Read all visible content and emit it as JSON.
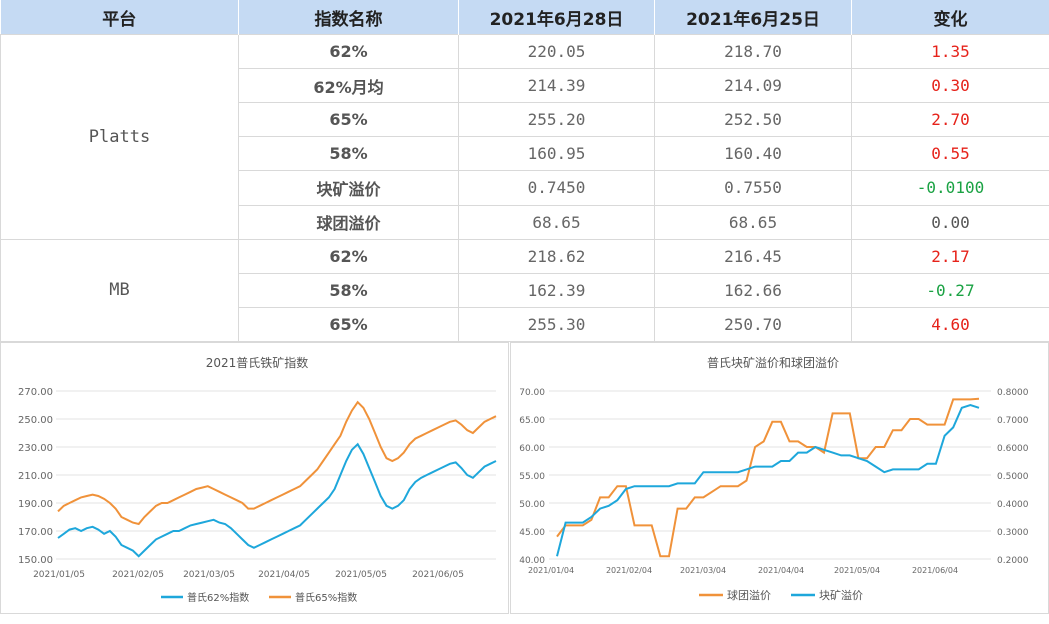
{
  "table": {
    "headers": [
      "平台",
      "指数名称",
      "2021年6月28日",
      "2021年6月25日",
      "变化"
    ],
    "groups": [
      {
        "platform": "Platts",
        "rows": [
          {
            "name": "62%",
            "d1": "220.05",
            "d2": "218.70",
            "chg": "1.35",
            "dir": "up"
          },
          {
            "name": "62%月均",
            "d1": "214.39",
            "d2": "214.09",
            "chg": "0.30",
            "dir": "up"
          },
          {
            "name": "65%",
            "d1": "255.20",
            "d2": "252.50",
            "chg": "2.70",
            "dir": "up"
          },
          {
            "name": "58%",
            "d1": "160.95",
            "d2": "160.40",
            "chg": "0.55",
            "dir": "up"
          },
          {
            "name": "块矿溢价",
            "d1": "0.7450",
            "d2": "0.7550",
            "chg": "-0.0100",
            "dir": "down"
          },
          {
            "name": "球团溢价",
            "d1": "68.65",
            "d2": "68.65",
            "chg": "0.00",
            "dir": "flat"
          }
        ]
      },
      {
        "platform": "MB",
        "rows": [
          {
            "name": "62%",
            "d1": "218.62",
            "d2": "216.45",
            "chg": "2.17",
            "dir": "up"
          },
          {
            "name": "58%",
            "d1": "162.39",
            "d2": "162.66",
            "chg": "-0.27",
            "dir": "down"
          },
          {
            "name": "65%",
            "d1": "255.30",
            "d2": "250.70",
            "chg": "4.60",
            "dir": "up"
          }
        ]
      }
    ],
    "colors": {
      "up": "#e6221a",
      "down": "#1aa243",
      "header_bg": "#c5daf3"
    }
  },
  "chart_data": [
    {
      "type": "line",
      "title": "2021普氏铁矿指数",
      "x_ticks": [
        "2021/01/05",
        "2021/02/05",
        "2021/03/05",
        "2021/04/05",
        "2021/05/05",
        "2021/06/05"
      ],
      "ylim": [
        150,
        270
      ],
      "y_ticks": [
        "150.00",
        "170.00",
        "190.00",
        "210.00",
        "230.00",
        "250.00",
        "270.00"
      ],
      "legend_position": "bottom",
      "grid": true,
      "series": [
        {
          "name": "普氏62%指数",
          "color": "#1ea7db",
          "values": [
            165,
            168,
            171,
            172,
            170,
            172,
            173,
            171,
            168,
            170,
            166,
            160,
            158,
            156,
            152,
            156,
            160,
            164,
            166,
            168,
            170,
            170,
            172,
            174,
            175,
            176,
            177,
            178,
            176,
            175,
            172,
            168,
            164,
            160,
            158,
            160,
            162,
            164,
            166,
            168,
            170,
            172,
            174,
            178,
            182,
            186,
            190,
            194,
            200,
            210,
            220,
            228,
            232,
            225,
            215,
            205,
            195,
            188,
            186,
            188,
            192,
            200,
            205,
            208,
            210,
            212,
            214,
            216,
            218,
            219,
            215,
            210,
            208,
            212,
            216,
            218,
            220
          ]
        },
        {
          "name": "普氏65%指数",
          "color": "#f0923a",
          "values": [
            184,
            188,
            190,
            192,
            194,
            195,
            196,
            195,
            193,
            190,
            186,
            180,
            178,
            176,
            175,
            180,
            184,
            188,
            190,
            190,
            192,
            194,
            196,
            198,
            200,
            201,
            202,
            200,
            198,
            196,
            194,
            192,
            190,
            186,
            186,
            188,
            190,
            192,
            194,
            196,
            198,
            200,
            202,
            206,
            210,
            214,
            220,
            226,
            232,
            238,
            248,
            256,
            262,
            258,
            250,
            240,
            230,
            222,
            220,
            222,
            226,
            232,
            236,
            238,
            240,
            242,
            244,
            246,
            248,
            249,
            246,
            242,
            240,
            244,
            248,
            250,
            252
          ]
        }
      ]
    },
    {
      "type": "line",
      "title": "普氏块矿溢价和球团溢价",
      "x_ticks": [
        "2021/01/04",
        "2021/02/04",
        "2021/03/04",
        "2021/04/04",
        "2021/05/04",
        "2021/06/04"
      ],
      "ylim_left": [
        40,
        70
      ],
      "y_ticks_left": [
        "40.00",
        "45.00",
        "50.00",
        "55.00",
        "60.00",
        "65.00",
        "70.00"
      ],
      "ylim_right": [
        0.2,
        0.8
      ],
      "y_ticks_right": [
        "0.2000",
        "0.3000",
        "0.4000",
        "0.5000",
        "0.6000",
        "0.7000",
        "0.8000"
      ],
      "legend_position": "bottom",
      "grid": true,
      "series": [
        {
          "name": "球团溢价",
          "color": "#f0923a",
          "axis": "left",
          "values": [
            44,
            46,
            46,
            46,
            47,
            51,
            51,
            53,
            53,
            46,
            46,
            46,
            40.5,
            40.5,
            49,
            49,
            51,
            51,
            52,
            53,
            53,
            53,
            54,
            60,
            61,
            64.5,
            64.5,
            61,
            61,
            60,
            60,
            59,
            66,
            66,
            66,
            58,
            58,
            60,
            60,
            63,
            63,
            65,
            65,
            64,
            64,
            64,
            68.5,
            68.5,
            68.5,
            68.6
          ]
        },
        {
          "name": "块矿溢价",
          "color": "#1ea7db",
          "axis": "right",
          "values": [
            0.21,
            0.33,
            0.33,
            0.33,
            0.35,
            0.38,
            0.39,
            0.41,
            0.45,
            0.46,
            0.46,
            0.46,
            0.46,
            0.46,
            0.47,
            0.47,
            0.47,
            0.51,
            0.51,
            0.51,
            0.51,
            0.51,
            0.52,
            0.53,
            0.53,
            0.53,
            0.55,
            0.55,
            0.58,
            0.58,
            0.6,
            0.59,
            0.58,
            0.57,
            0.57,
            0.56,
            0.55,
            0.53,
            0.51,
            0.52,
            0.52,
            0.52,
            0.52,
            0.54,
            0.54,
            0.64,
            0.67,
            0.74,
            0.75,
            0.74
          ]
        }
      ]
    }
  ]
}
